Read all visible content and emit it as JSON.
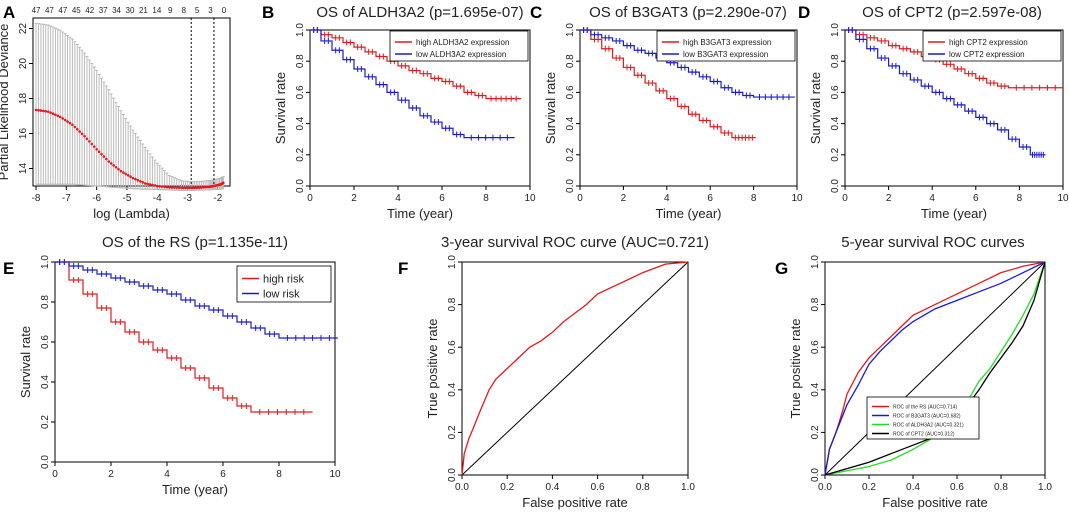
{
  "panel_letters": [
    "A",
    "B",
    "C",
    "D",
    "E",
    "F",
    "G"
  ],
  "chart_data": [
    {
      "panel": "A",
      "type": "line",
      "title": "",
      "xlabel": "log (Lambda)",
      "ylabel": "Partial Likelihood Deviance",
      "xlim": [
        -8.1,
        -1.6
      ],
      "ylim": [
        13.0,
        22.6
      ],
      "xticks": [
        "-8",
        "-7",
        "-6",
        "-5",
        "-4",
        "-3",
        "-2"
      ],
      "yticks": [
        "14",
        "16",
        "18",
        "20",
        "22"
      ],
      "top_ticks": [
        "47",
        "47",
        "47",
        "45",
        "42",
        "37",
        "34",
        "30",
        "21",
        "14",
        "9",
        "8",
        "5",
        "3",
        "0"
      ],
      "vlines": [
        -2.88,
        -2.13
      ],
      "x": [
        -8.0,
        -7.6,
        -7.2,
        -6.8,
        -6.4,
        -6.0,
        -5.6,
        -5.2,
        -4.8,
        -4.4,
        -4.0,
        -3.6,
        -3.2,
        -2.88,
        -2.6,
        -2.3,
        -2.13,
        -1.9,
        -1.8
      ],
      "mean": [
        17.35,
        17.25,
        16.95,
        16.5,
        15.85,
        15.1,
        14.4,
        13.85,
        13.45,
        13.15,
        13.0,
        12.92,
        12.9,
        12.9,
        12.91,
        12.95,
        13.0,
        13.1,
        13.2
      ],
      "upper": [
        22.3,
        22.2,
        21.9,
        21.4,
        20.6,
        19.6,
        18.5,
        17.3,
        16.2,
        15.2,
        14.3,
        13.6,
        13.3,
        13.25,
        13.26,
        13.3,
        13.35,
        13.45,
        13.55
      ],
      "lower": [
        13.1,
        13.1,
        13.1,
        13.1,
        13.05,
        13.0,
        12.95,
        12.9,
        12.85,
        12.82,
        12.8,
        12.78,
        12.75,
        12.75,
        12.76,
        12.78,
        12.8,
        12.82,
        12.85
      ]
    },
    {
      "panel": "B",
      "type": "line",
      "title": "OS of ALDH3A2 (p=1.695e-07)",
      "xlabel": "Time (year)",
      "ylabel": "Survival rate",
      "xlim": [
        0,
        10
      ],
      "ylim": [
        0,
        1
      ],
      "xticks": [
        "0",
        "2",
        "4",
        "6",
        "8",
        "10"
      ],
      "yticks": [
        "0.0",
        "0.2",
        "0.4",
        "0.6",
        "0.8",
        "1.0"
      ],
      "legend": "top-right",
      "series": [
        {
          "name": "high ALDH3A2 expression",
          "color": "#e41a1c",
          "x": [
            0,
            0.5,
            1,
            1.5,
            2,
            2.5,
            3,
            3.5,
            4,
            4.5,
            5,
            5.5,
            6,
            6.5,
            7,
            7.5,
            8,
            9.6
          ],
          "y": [
            1.0,
            0.97,
            0.95,
            0.92,
            0.89,
            0.86,
            0.83,
            0.8,
            0.77,
            0.74,
            0.72,
            0.69,
            0.67,
            0.64,
            0.6,
            0.58,
            0.56,
            0.56
          ]
        },
        {
          "name": "low ALDH3A2 expression",
          "color": "#1a1ad6",
          "x": [
            0,
            0.5,
            1,
            1.5,
            2,
            2.5,
            3,
            3.5,
            4,
            4.5,
            5,
            5.5,
            6,
            6.5,
            7,
            9.3
          ],
          "y": [
            1.0,
            0.93,
            0.87,
            0.81,
            0.75,
            0.7,
            0.65,
            0.6,
            0.55,
            0.5,
            0.45,
            0.41,
            0.37,
            0.33,
            0.31,
            0.31
          ]
        }
      ]
    },
    {
      "panel": "C",
      "type": "line",
      "title": "OS of B3GAT3 (p=2.290e-07)",
      "xlabel": "Time (year)",
      "ylabel": "Survival rate",
      "xlim": [
        0,
        10
      ],
      "ylim": [
        0,
        1
      ],
      "xticks": [
        "0",
        "2",
        "4",
        "6",
        "8",
        "10"
      ],
      "yticks": [
        "0.0",
        "0.2",
        "0.4",
        "0.6",
        "0.8",
        "1.0"
      ],
      "legend": "top-right",
      "series": [
        {
          "name": "high B3GAT3 expression",
          "color": "#e41a1c",
          "x": [
            0,
            0.5,
            1,
            1.5,
            2,
            2.5,
            3,
            3.5,
            4,
            4.5,
            5,
            5.5,
            6,
            6.5,
            7,
            8.1
          ],
          "y": [
            1.0,
            0.94,
            0.88,
            0.82,
            0.76,
            0.71,
            0.66,
            0.61,
            0.56,
            0.51,
            0.46,
            0.42,
            0.38,
            0.34,
            0.31,
            0.31
          ]
        },
        {
          "name": "low B3GAT3 expression",
          "color": "#1a1ad6",
          "x": [
            0,
            0.5,
            1,
            1.5,
            2,
            2.5,
            3,
            3.5,
            4,
            4.5,
            5,
            5.5,
            6,
            6.5,
            7,
            7.5,
            8,
            9.9
          ],
          "y": [
            1.0,
            0.97,
            0.95,
            0.93,
            0.9,
            0.87,
            0.85,
            0.82,
            0.79,
            0.76,
            0.73,
            0.7,
            0.67,
            0.63,
            0.6,
            0.58,
            0.57,
            0.57
          ]
        }
      ]
    },
    {
      "panel": "D",
      "type": "line",
      "title": "OS of CPT2 (p=2.597e-08)",
      "xlabel": "Time (year)",
      "ylabel": "Survival rate",
      "xlim": [
        0,
        10
      ],
      "ylim": [
        0,
        1
      ],
      "xticks": [
        "0",
        "2",
        "4",
        "6",
        "8",
        "10"
      ],
      "yticks": [
        "0.0",
        "0.2",
        "0.4",
        "0.6",
        "0.8",
        "1.0"
      ],
      "legend": "top-right",
      "series": [
        {
          "name": "high CPT2 expression",
          "color": "#e41a1c",
          "x": [
            0,
            0.5,
            1,
            1.5,
            2,
            2.5,
            3,
            3.5,
            4,
            4.5,
            5,
            5.5,
            6,
            6.5,
            7,
            7.5,
            10
          ],
          "y": [
            1.0,
            0.97,
            0.95,
            0.93,
            0.9,
            0.88,
            0.86,
            0.83,
            0.81,
            0.78,
            0.75,
            0.72,
            0.69,
            0.66,
            0.64,
            0.63,
            0.63
          ]
        },
        {
          "name": "low CPT2 expression",
          "color": "#1a1ad6",
          "x": [
            0,
            0.5,
            1,
            1.5,
            2,
            2.5,
            3,
            3.5,
            4,
            4.5,
            5,
            5.5,
            6,
            6.5,
            7,
            7.5,
            8,
            8.5,
            9.2
          ],
          "y": [
            1.0,
            0.94,
            0.88,
            0.82,
            0.77,
            0.72,
            0.68,
            0.64,
            0.6,
            0.56,
            0.52,
            0.48,
            0.44,
            0.4,
            0.36,
            0.3,
            0.25,
            0.2,
            0.2
          ]
        }
      ]
    },
    {
      "panel": "E",
      "type": "line",
      "title": "OS of the RS (p=1.135e-11)",
      "xlabel": "Time (year)",
      "ylabel": "Survival rate",
      "xlim": [
        0,
        10
      ],
      "ylim": [
        0,
        1
      ],
      "xticks": [
        "0",
        "2",
        "4",
        "6",
        "8",
        "10"
      ],
      "yticks": [
        "0.0",
        "0.2",
        "0.4",
        "0.6",
        "0.8",
        "1.0"
      ],
      "legend": "top-right",
      "series": [
        {
          "name": "high risk",
          "color": "#e41a1c",
          "x": [
            0,
            0.5,
            1,
            1.5,
            2,
            2.5,
            3,
            3.5,
            4,
            4.5,
            5,
            5.5,
            6,
            6.5,
            7,
            9.2
          ],
          "y": [
            1.0,
            0.91,
            0.84,
            0.77,
            0.7,
            0.65,
            0.6,
            0.56,
            0.52,
            0.47,
            0.42,
            0.37,
            0.32,
            0.28,
            0.25,
            0.25
          ]
        },
        {
          "name": "low risk",
          "color": "#1a1ad6",
          "x": [
            0,
            0.5,
            1,
            1.5,
            2,
            2.5,
            3,
            3.5,
            4,
            4.5,
            5,
            5.5,
            6,
            6.5,
            7,
            7.5,
            8,
            10.1
          ],
          "y": [
            1.0,
            0.98,
            0.96,
            0.94,
            0.92,
            0.9,
            0.88,
            0.86,
            0.84,
            0.81,
            0.78,
            0.76,
            0.73,
            0.7,
            0.67,
            0.64,
            0.62,
            0.62
          ]
        }
      ]
    },
    {
      "panel": "F",
      "type": "line",
      "title": "3-year survival ROC curve (AUC=0.721)",
      "xlabel": "False positive rate",
      "ylabel": "True positive rate",
      "xlim": [
        0,
        1
      ],
      "ylim": [
        0,
        1
      ],
      "xticks": [
        "0.0",
        "0.2",
        "0.4",
        "0.6",
        "0.8",
        "1.0"
      ],
      "yticks": [
        "0.0",
        "0.2",
        "0.4",
        "0.6",
        "0.8",
        "1.0"
      ],
      "series": [
        {
          "name": "ROC",
          "color": "#e41a1c",
          "x": [
            0,
            0.01,
            0.03,
            0.05,
            0.08,
            0.1,
            0.12,
            0.15,
            0.2,
            0.25,
            0.3,
            0.35,
            0.4,
            0.45,
            0.5,
            0.55,
            0.6,
            0.7,
            0.8,
            0.9,
            1.0
          ],
          "y": [
            0,
            0.1,
            0.17,
            0.22,
            0.3,
            0.35,
            0.4,
            0.45,
            0.5,
            0.55,
            0.6,
            0.63,
            0.67,
            0.72,
            0.76,
            0.8,
            0.85,
            0.9,
            0.95,
            0.99,
            1.0
          ]
        }
      ]
    },
    {
      "panel": "G",
      "type": "line",
      "title": "5-year survival ROC curves",
      "xlabel": "False positive rate",
      "ylabel": "True positive rate",
      "xlim": [
        0,
        1
      ],
      "ylim": [
        0,
        1
      ],
      "xticks": [
        "0.0",
        "0.2",
        "0.4",
        "0.6",
        "0.8",
        "1.0"
      ],
      "yticks": [
        "0.0",
        "0.2",
        "0.4",
        "0.6",
        "0.8",
        "1.0"
      ],
      "legend": "bottom-left",
      "series": [
        {
          "name": "ROC of the RS (AUC=0.714)",
          "color": "#e41a1c",
          "x": [
            0,
            0.02,
            0.05,
            0.08,
            0.1,
            0.15,
            0.2,
            0.25,
            0.3,
            0.35,
            0.4,
            0.5,
            0.6,
            0.7,
            0.8,
            0.9,
            1.0
          ],
          "y": [
            0,
            0.12,
            0.2,
            0.3,
            0.38,
            0.48,
            0.55,
            0.6,
            0.65,
            0.7,
            0.75,
            0.8,
            0.85,
            0.9,
            0.95,
            0.98,
            1.0
          ]
        },
        {
          "name": "ROC of B3GAT3 (AUC=0.682)",
          "color": "#1a1ad6",
          "x": [
            0,
            0.02,
            0.05,
            0.1,
            0.15,
            0.2,
            0.25,
            0.3,
            0.35,
            0.4,
            0.5,
            0.6,
            0.7,
            0.8,
            0.9,
            1.0
          ],
          "y": [
            0,
            0.12,
            0.2,
            0.33,
            0.42,
            0.52,
            0.58,
            0.63,
            0.68,
            0.72,
            0.78,
            0.82,
            0.86,
            0.9,
            0.95,
            1.0
          ]
        },
        {
          "name": "ROC of ALDH3A2 (AUC=0.321)",
          "color": "#22dd22",
          "x": [
            0,
            0.1,
            0.2,
            0.3,
            0.4,
            0.5,
            0.6,
            0.65,
            0.7,
            0.75,
            0.8,
            0.85,
            0.9,
            0.95,
            1.0
          ],
          "y": [
            0,
            0.02,
            0.04,
            0.07,
            0.12,
            0.18,
            0.28,
            0.35,
            0.44,
            0.5,
            0.58,
            0.66,
            0.75,
            0.85,
            1.0
          ]
        },
        {
          "name": "ROC of CPT2 (AUC=0.312)",
          "color": "#000000",
          "x": [
            0,
            0.1,
            0.2,
            0.3,
            0.4,
            0.5,
            0.6,
            0.65,
            0.7,
            0.75,
            0.8,
            0.85,
            0.9,
            0.95,
            1.0
          ],
          "y": [
            0,
            0.03,
            0.06,
            0.1,
            0.14,
            0.18,
            0.25,
            0.33,
            0.4,
            0.48,
            0.55,
            0.62,
            0.7,
            0.82,
            1.0
          ]
        }
      ]
    }
  ]
}
